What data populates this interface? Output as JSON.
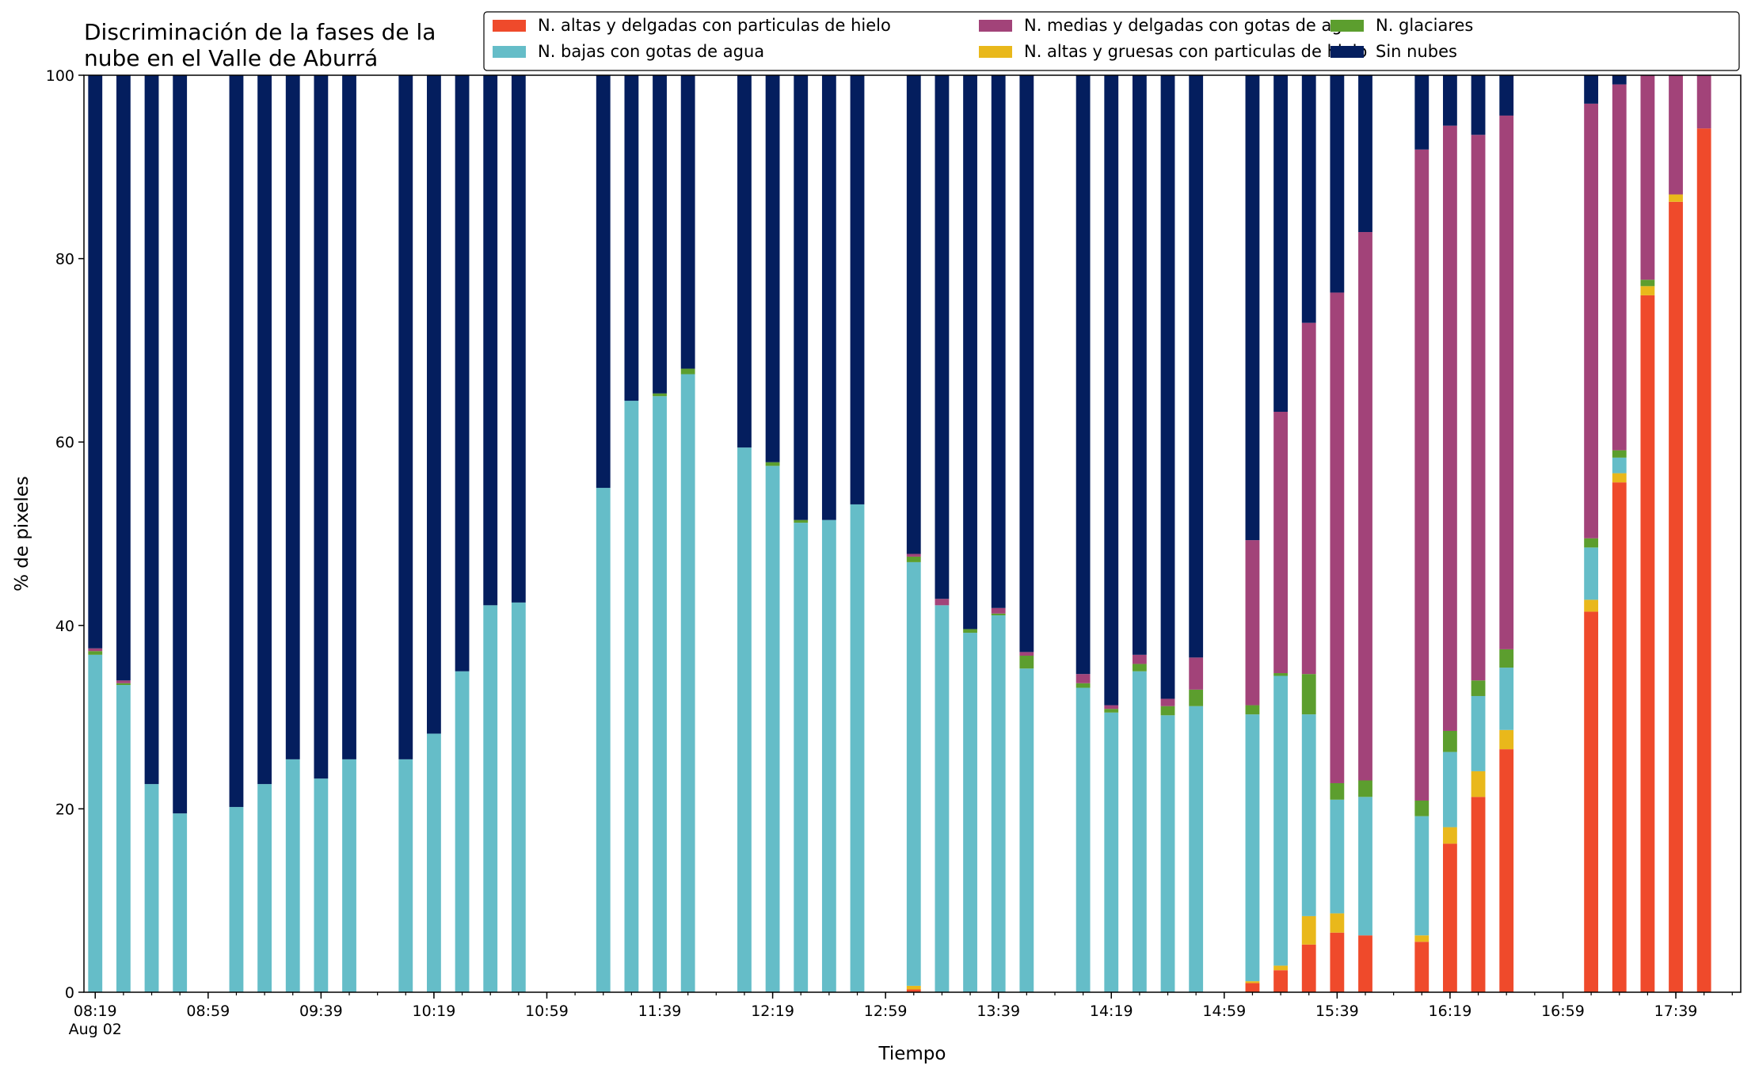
{
  "chart_data": {
    "type": "bar",
    "stacked": true,
    "title_lines": [
      "Discriminación de la fases de la",
      "nube en el Valle de Aburrá"
    ],
    "xlabel": "Tiempo",
    "ylabel": "% de pixeles",
    "ylim": [
      0,
      100
    ],
    "yticks": [
      0,
      20,
      40,
      60,
      80,
      100
    ],
    "xlim_minutes": [
      495,
      1082
    ],
    "xtick_labels": [
      {
        "minute": 499,
        "label": "08:19",
        "sublabel": "Aug 02"
      },
      {
        "minute": 539,
        "label": "08:59"
      },
      {
        "minute": 579,
        "label": "09:39"
      },
      {
        "minute": 619,
        "label": "10:19"
      },
      {
        "minute": 659,
        "label": "10:59"
      },
      {
        "minute": 699,
        "label": "11:39"
      },
      {
        "minute": 739,
        "label": "12:19"
      },
      {
        "minute": 779,
        "label": "12:59"
      },
      {
        "minute": 819,
        "label": "13:39"
      },
      {
        "minute": 859,
        "label": "14:19"
      },
      {
        "minute": 899,
        "label": "14:59"
      },
      {
        "minute": 939,
        "label": "15:39"
      },
      {
        "minute": 979,
        "label": "16:19"
      },
      {
        "minute": 1019,
        "label": "16:59"
      },
      {
        "minute": 1059,
        "label": "17:39"
      }
    ],
    "minor_tick_step_minutes": 10,
    "legend_position": "top-right",
    "grid": false,
    "series": [
      {
        "name": "N. altas y delgadas con particulas de hielo",
        "color": "#ef4a2b",
        "key": "s1"
      },
      {
        "name": "N. altas y gruesas con particulas de hielo",
        "color": "#e9b81b",
        "key": "s2"
      },
      {
        "name": "N. bajas con gotas de agua",
        "color": "#65bdc8",
        "key": "s3"
      },
      {
        "name": "N. glaciares",
        "color": "#5c9e2e",
        "key": "s4"
      },
      {
        "name": "N. medias y delgadas con gotas de agua",
        "color": "#a24379",
        "key": "s5"
      },
      {
        "name": "Sin nubes",
        "color": "#041e5e",
        "key": "s6"
      }
    ],
    "legend_order": [
      "s1",
      "s3",
      "s5",
      "s2",
      "s4",
      "s6"
    ],
    "bar_width_minutes": 5,
    "bars": [
      {
        "t": "08:19",
        "m": 499,
        "s1": 0,
        "s2": 0,
        "s3": 36.8,
        "s4": 0.4,
        "s5": 0.3,
        "s6": 62.5
      },
      {
        "t": "08:29",
        "m": 509,
        "s1": 0,
        "s2": 0,
        "s3": 33.5,
        "s4": 0.2,
        "s5": 0.3,
        "s6": 66.0
      },
      {
        "t": "08:39",
        "m": 519,
        "s1": 0,
        "s2": 0,
        "s3": 22.7,
        "s4": 0,
        "s5": 0,
        "s6": 77.3
      },
      {
        "t": "08:49",
        "m": 529,
        "s1": 0,
        "s2": 0,
        "s3": 19.5,
        "s4": 0,
        "s5": 0,
        "s6": 80.5
      },
      {
        "t": "09:09",
        "m": 549,
        "s1": 0,
        "s2": 0,
        "s3": 20.2,
        "s4": 0,
        "s5": 0,
        "s6": 79.8
      },
      {
        "t": "09:19",
        "m": 559,
        "s1": 0,
        "s2": 0,
        "s3": 22.7,
        "s4": 0,
        "s5": 0,
        "s6": 77.3
      },
      {
        "t": "09:29",
        "m": 569,
        "s1": 0,
        "s2": 0,
        "s3": 25.4,
        "s4": 0,
        "s5": 0,
        "s6": 74.6
      },
      {
        "t": "09:39",
        "m": 579,
        "s1": 0,
        "s2": 0,
        "s3": 23.3,
        "s4": 0,
        "s5": 0,
        "s6": 76.7
      },
      {
        "t": "09:49",
        "m": 589,
        "s1": 0,
        "s2": 0,
        "s3": 25.4,
        "s4": 0,
        "s5": 0,
        "s6": 74.6
      },
      {
        "t": "10:09",
        "m": 609,
        "s1": 0,
        "s2": 0,
        "s3": 25.4,
        "s4": 0,
        "s5": 0,
        "s6": 74.6
      },
      {
        "t": "10:19",
        "m": 619,
        "s1": 0,
        "s2": 0,
        "s3": 28.2,
        "s4": 0,
        "s5": 0,
        "s6": 71.8
      },
      {
        "t": "10:29",
        "m": 629,
        "s1": 0,
        "s2": 0,
        "s3": 35.0,
        "s4": 0,
        "s5": 0,
        "s6": 65.0
      },
      {
        "t": "10:39",
        "m": 639,
        "s1": 0,
        "s2": 0,
        "s3": 42.2,
        "s4": 0,
        "s5": 0,
        "s6": 57.8
      },
      {
        "t": "10:49",
        "m": 649,
        "s1": 0,
        "s2": 0,
        "s3": 42.5,
        "s4": 0,
        "s5": 0,
        "s6": 57.5
      },
      {
        "t": "11:19",
        "m": 679,
        "s1": 0,
        "s2": 0,
        "s3": 55.0,
        "s4": 0,
        "s5": 0,
        "s6": 45.0
      },
      {
        "t": "11:29",
        "m": 689,
        "s1": 0,
        "s2": 0,
        "s3": 64.5,
        "s4": 0,
        "s5": 0,
        "s6": 35.5
      },
      {
        "t": "11:39",
        "m": 699,
        "s1": 0,
        "s2": 0,
        "s3": 65.0,
        "s4": 0.3,
        "s5": 0,
        "s6": 34.7
      },
      {
        "t": "11:49",
        "m": 709,
        "s1": 0,
        "s2": 0,
        "s3": 67.4,
        "s4": 0.6,
        "s5": 0,
        "s6": 32.0
      },
      {
        "t": "12:09",
        "m": 729,
        "s1": 0,
        "s2": 0,
        "s3": 59.4,
        "s4": 0,
        "s5": 0,
        "s6": 40.6
      },
      {
        "t": "12:19",
        "m": 739,
        "s1": 0,
        "s2": 0,
        "s3": 57.4,
        "s4": 0.4,
        "s5": 0,
        "s6": 42.2
      },
      {
        "t": "12:29",
        "m": 749,
        "s1": 0,
        "s2": 0,
        "s3": 51.2,
        "s4": 0.3,
        "s5": 0,
        "s6": 48.5
      },
      {
        "t": "12:39",
        "m": 759,
        "s1": 0,
        "s2": 0,
        "s3": 51.5,
        "s4": 0,
        "s5": 0,
        "s6": 48.5
      },
      {
        "t": "12:49",
        "m": 769,
        "s1": 0,
        "s2": 0,
        "s3": 53.2,
        "s4": 0,
        "s5": 0,
        "s6": 46.8
      },
      {
        "t": "13:09",
        "m": 789,
        "s1": 0.3,
        "s2": 0.4,
        "s3": 46.2,
        "s4": 0.6,
        "s5": 0.3,
        "s6": 52.2
      },
      {
        "t": "13:19",
        "m": 799,
        "s1": 0,
        "s2": 0,
        "s3": 42.2,
        "s4": 0,
        "s5": 0.7,
        "s6": 57.1
      },
      {
        "t": "13:29",
        "m": 809,
        "s1": 0,
        "s2": 0,
        "s3": 39.2,
        "s4": 0.4,
        "s5": 0,
        "s6": 60.4
      },
      {
        "t": "13:39",
        "m": 819,
        "s1": 0,
        "s2": 0,
        "s3": 41.1,
        "s4": 0.2,
        "s5": 0.6,
        "s6": 58.1
      },
      {
        "t": "13:49",
        "m": 829,
        "s1": 0,
        "s2": 0,
        "s3": 35.3,
        "s4": 1.4,
        "s5": 0.4,
        "s6": 62.9
      },
      {
        "t": "14:09",
        "m": 849,
        "s1": 0,
        "s2": 0,
        "s3": 33.2,
        "s4": 0.5,
        "s5": 1.0,
        "s6": 65.3
      },
      {
        "t": "14:19",
        "m": 859,
        "s1": 0,
        "s2": 0,
        "s3": 30.5,
        "s4": 0.4,
        "s5": 0.4,
        "s6": 68.7
      },
      {
        "t": "14:29",
        "m": 869,
        "s1": 0,
        "s2": 0,
        "s3": 35.0,
        "s4": 0.8,
        "s5": 1.0,
        "s6": 63.2
      },
      {
        "t": "14:39",
        "m": 879,
        "s1": 0,
        "s2": 0,
        "s3": 30.2,
        "s4": 1.0,
        "s5": 0.8,
        "s6": 68.0
      },
      {
        "t": "14:49",
        "m": 889,
        "s1": 0,
        "s2": 0,
        "s3": 31.2,
        "s4": 1.8,
        "s5": 3.5,
        "s6": 63.5
      },
      {
        "t": "15:09",
        "m": 909,
        "s1": 1.0,
        "s2": 0.2,
        "s3": 29.1,
        "s4": 1.0,
        "s5": 18.0,
        "s6": 50.7
      },
      {
        "t": "15:19",
        "m": 919,
        "s1": 2.4,
        "s2": 0.5,
        "s3": 31.6,
        "s4": 0.3,
        "s5": 28.5,
        "s6": 36.7
      },
      {
        "t": "15:29",
        "m": 929,
        "s1": 5.2,
        "s2": 3.1,
        "s3": 22.0,
        "s4": 4.4,
        "s5": 38.3,
        "s6": 27.0
      },
      {
        "t": "15:39",
        "m": 939,
        "s1": 6.5,
        "s2": 2.1,
        "s3": 12.4,
        "s4": 1.8,
        "s5": 53.5,
        "s6": 23.7
      },
      {
        "t": "15:49",
        "m": 949,
        "s1": 6.2,
        "s2": 0,
        "s3": 15.1,
        "s4": 1.8,
        "s5": 59.8,
        "s6": 17.1
      },
      {
        "t": "16:09",
        "m": 969,
        "s1": 5.5,
        "s2": 0.7,
        "s3": 13.0,
        "s4": 1.7,
        "s5": 71.0,
        "s6": 8.1
      },
      {
        "t": "16:19",
        "m": 979,
        "s1": 16.2,
        "s2": 1.8,
        "s3": 8.2,
        "s4": 2.3,
        "s5": 66.0,
        "s6": 5.5
      },
      {
        "t": "16:29",
        "m": 989,
        "s1": 21.3,
        "s2": 2.8,
        "s3": 8.2,
        "s4": 1.7,
        "s5": 59.5,
        "s6": 6.5
      },
      {
        "t": "16:39",
        "m": 999,
        "s1": 26.5,
        "s2": 2.1,
        "s3": 6.8,
        "s4": 2.0,
        "s5": 58.2,
        "s6": 4.4
      },
      {
        "t": "17:09",
        "m": 1029,
        "s1": 41.5,
        "s2": 1.3,
        "s3": 5.7,
        "s4": 1.0,
        "s5": 47.4,
        "s6": 3.1
      },
      {
        "t": "17:19",
        "m": 1039,
        "s1": 55.6,
        "s2": 1.0,
        "s3": 1.7,
        "s4": 0.8,
        "s5": 39.9,
        "s6": 1.0
      },
      {
        "t": "17:29",
        "m": 1049,
        "s1": 76.0,
        "s2": 1.0,
        "s3": 0,
        "s4": 0.7,
        "s5": 22.3,
        "s6": 0
      },
      {
        "t": "17:39",
        "m": 1059,
        "s1": 86.2,
        "s2": 0.8,
        "s3": 0,
        "s4": 0,
        "s5": 13.0,
        "s6": 0
      },
      {
        "t": "17:49",
        "m": 1069,
        "s1": 94.2,
        "s2": 0,
        "s3": 0,
        "s4": 0,
        "s5": 5.8,
        "s6": 0
      }
    ]
  }
}
